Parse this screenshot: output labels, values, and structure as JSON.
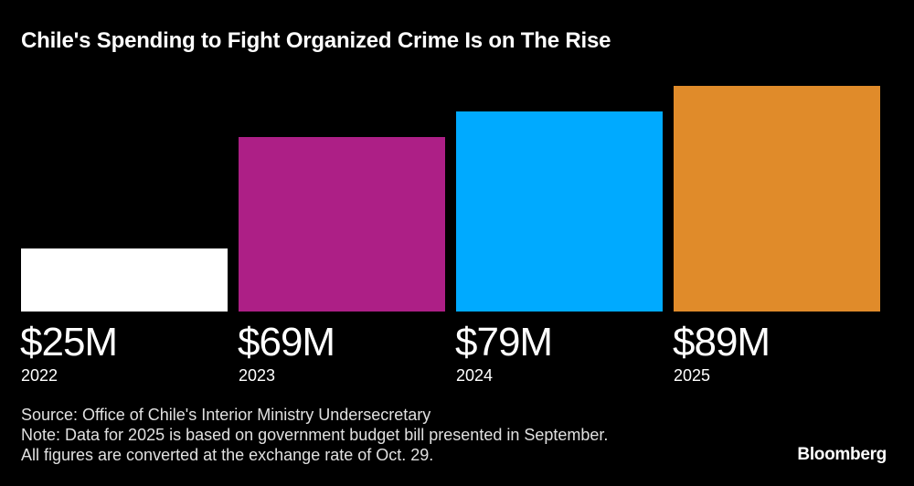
{
  "chart_data": {
    "type": "bar",
    "title": "Chile's Spending to Fight Organized Crime Is on The Rise",
    "categories": [
      "2022",
      "2023",
      "2024",
      "2025"
    ],
    "values": [
      25,
      69,
      79,
      89
    ],
    "value_labels": [
      "$25M",
      "$69M",
      "$79M",
      "$89M"
    ],
    "unit": "USD millions",
    "ylim": [
      0,
      89
    ],
    "colors": [
      "#ffffff",
      "#ad1f86",
      "#00aaff",
      "#e08b2a"
    ],
    "grid": false,
    "legend": "none"
  },
  "footer": {
    "source": "Source: Office of Chile's Interior Ministry Undersecretary",
    "note": "Note: Data for 2025 is based on government budget bill presented in September.",
    "note2": "All figures are converted at the exchange rate of Oct. 29.",
    "brand": "Bloomberg"
  }
}
